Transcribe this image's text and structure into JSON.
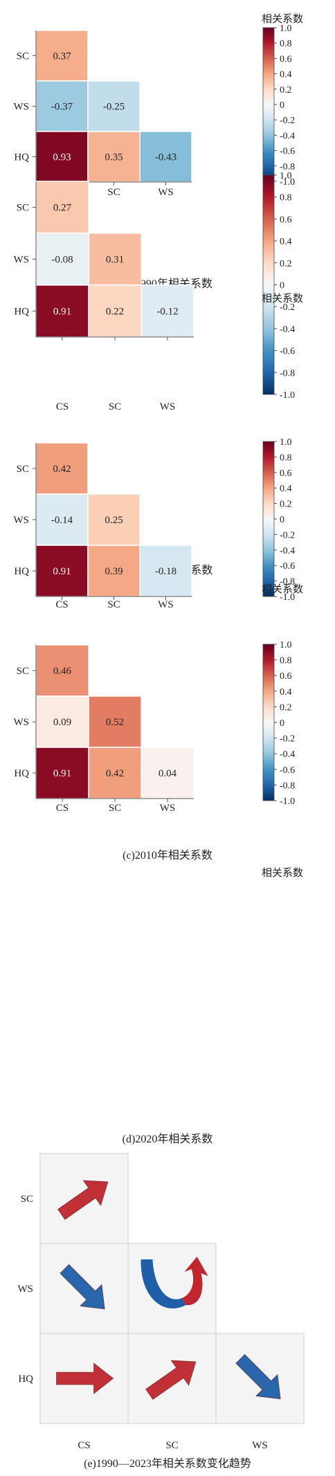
{
  "colorbar": {
    "title": "相关系数",
    "ticks": [
      "1.0",
      "0.8",
      "0.6",
      "0.4",
      "0.2",
      "0",
      "-0.2",
      "-0.4",
      "-0.6",
      "-0.8",
      "-1.0"
    ],
    "colors": [
      "#67001f",
      "#b2182b",
      "#d6604d",
      "#f4a582",
      "#fddbc7",
      "#f7f7f7",
      "#d1e5f0",
      "#92c5de",
      "#4393c3",
      "#2166ac",
      "#053061"
    ]
  },
  "chart_data": [
    {
      "type": "heatmap",
      "title": "(a)1990年相关系数",
      "x_labels": [
        "CS",
        "SC",
        "WS"
      ],
      "y_labels": [
        "SC",
        "WS",
        "HQ"
      ],
      "values": [
        [
          0.37,
          null,
          null
        ],
        [
          -0.37,
          -0.25,
          null
        ],
        [
          0.93,
          0.35,
          -0.43
        ]
      ],
      "value_labels": [
        [
          "0.37",
          "",
          ""
        ],
        [
          "-0.37",
          "-0.25",
          ""
        ],
        [
          "0.93",
          "0.35",
          "-0.43"
        ]
      ],
      "zlim": [
        -1,
        1
      ]
    },
    {
      "type": "heatmap",
      "title": "(b)2000年相关系数",
      "x_labels": [
        "CS",
        "SC",
        "WS"
      ],
      "y_labels": [
        "SC",
        "WS",
        "HQ"
      ],
      "values": [
        [
          0.27,
          null,
          null
        ],
        [
          -0.08,
          0.31,
          null
        ],
        [
          0.91,
          0.22,
          -0.12
        ]
      ],
      "value_labels": [
        [
          "0.27",
          "",
          ""
        ],
        [
          "-0.08",
          "0.31",
          ""
        ],
        [
          "0.91",
          "0.22",
          "-0.12"
        ]
      ],
      "zlim": [
        -1,
        1
      ]
    },
    {
      "type": "heatmap",
      "title": "(c)2010年相关系数",
      "x_labels": [
        "CS",
        "SC",
        "WS"
      ],
      "y_labels": [
        "SC",
        "WS",
        "HQ"
      ],
      "values": [
        [
          0.42,
          null,
          null
        ],
        [
          -0.14,
          0.25,
          null
        ],
        [
          0.91,
          0.39,
          -0.18
        ]
      ],
      "value_labels": [
        [
          "0.42",
          "",
          ""
        ],
        [
          "-0.14",
          "0.25",
          ""
        ],
        [
          "0.91",
          "0.39",
          "-0.18"
        ]
      ],
      "zlim": [
        -1,
        1
      ]
    },
    {
      "type": "heatmap",
      "title": "(d)2020年相关系数",
      "x_labels": [
        "CS",
        "SC",
        "WS"
      ],
      "y_labels": [
        "SC",
        "WS",
        "HQ"
      ],
      "values": [
        [
          0.46,
          null,
          null
        ],
        [
          0.09,
          0.52,
          null
        ],
        [
          0.91,
          0.42,
          0.04
        ]
      ],
      "value_labels": [
        [
          "0.46",
          "",
          ""
        ],
        [
          "0.09",
          "0.52",
          ""
        ],
        [
          "0.91",
          "0.42",
          "0.04"
        ]
      ],
      "zlim": [
        -1,
        1
      ]
    }
  ],
  "trend": {
    "title": "(e)1990—2023年相关系数变化趋势",
    "x_labels": [
      "CS",
      "SC",
      "WS"
    ],
    "y_labels": [
      "SC",
      "WS",
      "HQ"
    ],
    "arrows": [
      [
        "up-right",
        null,
        null
      ],
      [
        "down-right",
        "u-turn-up",
        null
      ],
      [
        "right",
        "up-right",
        "down-right"
      ]
    ],
    "arrow_colors": {
      "up": "#c0262d",
      "right": "#c0262d",
      "down": "#1f5fa8"
    }
  }
}
